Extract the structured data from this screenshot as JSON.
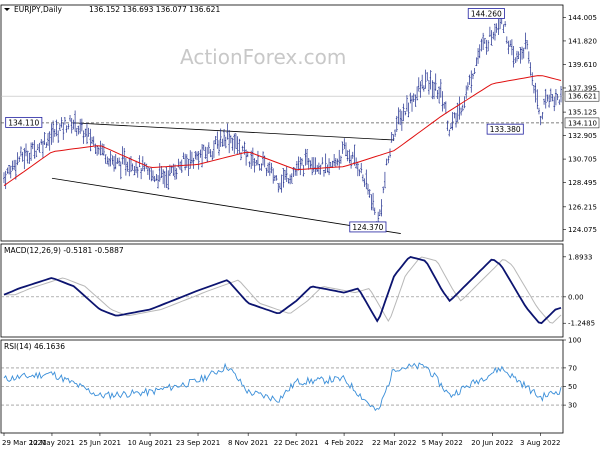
{
  "chart_data": [
    {
      "panel": "price",
      "type": "ohlc",
      "title": {
        "symbol": "EURJPY,Daily",
        "ohlc": "136.152 136.693 136.077 136.621"
      },
      "watermark": "ActionForex.com",
      "ylim": [
        123.0,
        145.2
      ],
      "y_ticks": [
        "144.005",
        "141.820",
        "139.610",
        "137.395",
        "135.125",
        "132.905",
        "130.705",
        "128.495",
        "126.215",
        "124.075"
      ],
      "x_ticks": [
        "29 Mar 2021",
        "12 May 2021",
        "25 Jun 2021",
        "10 Aug 2021",
        "23 Sep 2021",
        "8 Nov 2021",
        "22 Dec 2021",
        "4 Feb 2022",
        "22 Mar 2022",
        "5 May 2022",
        "20 Jun 2022",
        "3 Aug 2022"
      ],
      "last_price": {
        "label": "136.621",
        "value": 136.621
      },
      "level_line": {
        "label": "134.110",
        "value": 134.11
      },
      "annotations": [
        "134.110",
        "144.260",
        "133.380",
        "124.370"
      ],
      "colors": {
        "bars": "#1b2a8c",
        "moving_average": "#e01010",
        "trendlines": "#000000",
        "level_line": "#555555",
        "label_box": "#2020a0"
      },
      "series": [
        {
          "name": "",
          "points": [
            {
              "x": "29 Mar 2021",
              "y": 129.0
            },
            {
              "x": "12 Apr 2021",
              "y": 130.8
            },
            {
              "x": "26 Apr 2021",
              "y": 131.6
            },
            {
              "x": "12 May 2021",
              "y": 133.0
            },
            {
              "x": "25 May 2021",
              "y": 134.0
            },
            {
              "x": "1 Jun 2021",
              "y": 134.11
            },
            {
              "x": "10 Jun 2021",
              "y": 133.2
            },
            {
              "x": "25 Jun 2021",
              "y": 131.8
            },
            {
              "x": "10 Jul 2021",
              "y": 130.2
            },
            {
              "x": "24 Jul 2021",
              "y": 130.5
            },
            {
              "x": "10 Aug 2021",
              "y": 129.2
            },
            {
              "x": "24 Aug 2021",
              "y": 129.0
            },
            {
              "x": "10 Sep 2021",
              "y": 130.4
            },
            {
              "x": "23 Sep 2021",
              "y": 130.9
            },
            {
              "x": "5 Oct 2021",
              "y": 131.6
            },
            {
              "x": "20 Oct 2021",
              "y": 133.0
            },
            {
              "x": "8 Nov 2021",
              "y": 130.8
            },
            {
              "x": "22 Nov 2021",
              "y": 130.2
            },
            {
              "x": "6 Dec 2021",
              "y": 128.6
            },
            {
              "x": "22 Dec 2021",
              "y": 129.6
            },
            {
              "x": "5 Jan 2022",
              "y": 130.8
            },
            {
              "x": "20 Jan 2022",
              "y": 129.5
            },
            {
              "x": "4 Feb 2022",
              "y": 131.5
            },
            {
              "x": "17 Feb 2022",
              "y": 130.2
            },
            {
              "x": "1 Mar 2022",
              "y": 127.0
            },
            {
              "x": "7 Mar 2022",
              "y": 124.37
            },
            {
              "x": "15 Mar 2022",
              "y": 129.8
            },
            {
              "x": "22 Mar 2022",
              "y": 133.5
            },
            {
              "x": "5 Apr 2022",
              "y": 136.0
            },
            {
              "x": "20 Apr 2022",
              "y": 138.0
            },
            {
              "x": "5 May 2022",
              "y": 136.8
            },
            {
              "x": "12 May 2022",
              "y": 133.38
            },
            {
              "x": "25 May 2022",
              "y": 136.2
            },
            {
              "x": "8 Jun 2022",
              "y": 140.8
            },
            {
              "x": "20 Jun 2022",
              "y": 142.5
            },
            {
              "x": "28 Jun 2022",
              "y": 144.26
            },
            {
              "x": "10 Jul 2022",
              "y": 139.8
            },
            {
              "x": "21 Jul 2022",
              "y": 141.4
            },
            {
              "x": "3 Aug 2022",
              "y": 134.6
            },
            {
              "x": "10 Aug 2022",
              "y": 136.8
            },
            {
              "x": "17 Aug 2022",
              "y": 136.3
            },
            {
              "x": "22 Aug 2022",
              "y": 136.621
            }
          ]
        },
        {
          "name": "",
          "points": [
            {
              "x": "29 Mar 2021",
              "y": 128.2
            },
            {
              "x": "12 May 2021",
              "y": 131.4
            },
            {
              "x": "25 Jun 2021",
              "y": 132.0
            },
            {
              "x": "10 Aug 2021",
              "y": 129.9
            },
            {
              "x": "23 Sep 2021",
              "y": 130.2
            },
            {
              "x": "8 Nov 2021",
              "y": 131.4
            },
            {
              "x": "22 Dec 2021",
              "y": 129.7
            },
            {
              "x": "4 Feb 2022",
              "y": 130.0
            },
            {
              "x": "22 Mar 2022",
              "y": 131.5
            },
            {
              "x": "5 May 2022",
              "y": 134.8
            },
            {
              "x": "20 Jun 2022",
              "y": 137.8
            },
            {
              "x": "3 Aug 2022",
              "y": 138.6
            },
            {
              "x": "22 Aug 2022",
              "y": 138.1
            }
          ]
        }
      ]
    },
    {
      "panel": "macd",
      "type": "line",
      "title": "MACD(12,26,9) -0.5181 -0.5887",
      "ylim": [
        -1.9,
        2.5
      ],
      "y_ticks": [
        "1.8933",
        "0.00",
        "-1.2485"
      ],
      "colors": {
        "macd": "#0c1470",
        "signal": "#b8b8b8",
        "zero": "#888888"
      },
      "series": [
        {
          "name": "",
          "points": [
            {
              "x": "29 Mar 2021",
              "y": 0.1
            },
            {
              "x": "12 Apr 2021",
              "y": 0.4
            },
            {
              "x": "12 May 2021",
              "y": 0.9
            },
            {
              "x": "1 Jun 2021",
              "y": 0.5
            },
            {
              "x": "25 Jun 2021",
              "y": -0.6
            },
            {
              "x": "10 Jul 2021",
              "y": -0.9
            },
            {
              "x": "10 Aug 2021",
              "y": -0.6
            },
            {
              "x": "23 Sep 2021",
              "y": 0.3
            },
            {
              "x": "20 Oct 2021",
              "y": 0.8
            },
            {
              "x": "8 Nov 2021",
              "y": -0.3
            },
            {
              "x": "6 Dec 2021",
              "y": -0.8
            },
            {
              "x": "22 Dec 2021",
              "y": -0.2
            },
            {
              "x": "5 Jan 2022",
              "y": 0.5
            },
            {
              "x": "4 Feb 2022",
              "y": 0.2
            },
            {
              "x": "17 Feb 2022",
              "y": 0.4
            },
            {
              "x": "7 Mar 2022",
              "y": -1.2
            },
            {
              "x": "22 Mar 2022",
              "y": 1.0
            },
            {
              "x": "5 Apr 2022",
              "y": 1.9
            },
            {
              "x": "20 Apr 2022",
              "y": 1.7
            },
            {
              "x": "5 May 2022",
              "y": 0.3
            },
            {
              "x": "12 May 2022",
              "y": -0.2
            },
            {
              "x": "20 Jun 2022",
              "y": 1.8
            },
            {
              "x": "28 Jun 2022",
              "y": 1.5
            },
            {
              "x": "21 Jul 2022",
              "y": -0.5
            },
            {
              "x": "3 Aug 2022",
              "y": -1.3
            },
            {
              "x": "17 Aug 2022",
              "y": -0.6
            },
            {
              "x": "22 Aug 2022",
              "y": -0.52
            }
          ]
        }
      ]
    },
    {
      "panel": "rsi",
      "type": "line",
      "title": "RSI(14) 46.1636",
      "ylim": [
        0,
        100
      ],
      "y_ticks": [
        "100",
        "70",
        "50",
        "30"
      ],
      "colors": {
        "rsi": "#3b8fd9",
        "levels": "#777777"
      },
      "series": [
        {
          "name": "",
          "points": [
            {
              "x": "29 Mar 2021",
              "y": 58
            },
            {
              "x": "12 May 2021",
              "y": 64
            },
            {
              "x": "25 Jun 2021",
              "y": 40
            },
            {
              "x": "10 Aug 2021",
              "y": 44
            },
            {
              "x": "23 Sep 2021",
              "y": 56
            },
            {
              "x": "20 Oct 2021",
              "y": 72
            },
            {
              "x": "8 Nov 2021",
              "y": 44
            },
            {
              "x": "6 Dec 2021",
              "y": 36
            },
            {
              "x": "22 Dec 2021",
              "y": 55
            },
            {
              "x": "4 Feb 2022",
              "y": 58
            },
            {
              "x": "7 Mar 2022",
              "y": 22
            },
            {
              "x": "22 Mar 2022",
              "y": 70
            },
            {
              "x": "20 Apr 2022",
              "y": 72
            },
            {
              "x": "12 May 2022",
              "y": 40
            },
            {
              "x": "28 Jun 2022",
              "y": 70
            },
            {
              "x": "21 Jul 2022",
              "y": 50
            },
            {
              "x": "3 Aug 2022",
              "y": 38
            },
            {
              "x": "22 Aug 2022",
              "y": 46.2
            }
          ]
        }
      ]
    }
  ],
  "x_axis": {
    "first_date": "29 Mar 2021",
    "last_date": "22 Aug 2022"
  }
}
